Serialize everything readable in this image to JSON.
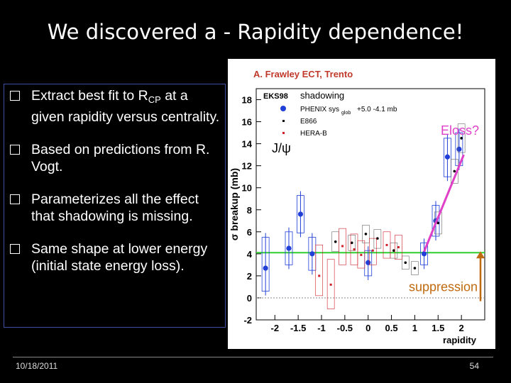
{
  "slide": {
    "title": "We discovered a - Rapidity dependence!",
    "bullets": [
      {
        "text": "Extract best fit to R",
        "sub": "CP",
        "after": " at a given rapidity versus centrality."
      },
      {
        "text": "Based on predictions from R. Vogt.",
        "sub": "",
        "after": ""
      },
      {
        "text": "Parameterizes all the effect that shadowing is missing.",
        "sub": "",
        "after": ""
      },
      {
        "text": "Same shape at lower energy (initial state energy loss).",
        "sub": "",
        "after": ""
      }
    ],
    "footer": {
      "date": "10/18/2011",
      "page": "54"
    }
  },
  "chart_data": {
    "type": "scatter",
    "header": "A. Frawley ECT, Trento",
    "xlabel": "rapidity",
    "ylabel": "σ breakup (mb)",
    "xlim": [
      -2.4,
      2.5
    ],
    "ylim": [
      -2,
      19
    ],
    "xticks": [
      -2,
      -1.5,
      -1,
      -0.5,
      0,
      0.5,
      1,
      1.5,
      2
    ],
    "yticks": [
      -2,
      0,
      2,
      4,
      6,
      8,
      10,
      12,
      14,
      16,
      18
    ],
    "legend": {
      "model": "EKS98",
      "model_sub": "shadowing",
      "entries": [
        {
          "name": "PHENIX sys",
          "suffix": "glob",
          "extra": "+5.0 -4.1 mb",
          "color": "#1f3fd8"
        },
        {
          "name": "E866",
          "color": "#000000"
        },
        {
          "name": "HERA-B",
          "color": "#d0202a"
        }
      ],
      "particle": "J/ψ"
    },
    "annotations": {
      "eloss": "Eloss?",
      "suppression": "suppression"
    },
    "level_line": {
      "y": 4.1,
      "color": "#2fcf2f"
    },
    "eloss_line": {
      "from": [
        1.2,
        4.2
      ],
      "to": [
        2.05,
        13.0
      ],
      "color": "#e040c8"
    },
    "series": [
      {
        "name": "PHENIX",
        "color": "#1f3fd8",
        "points": [
          {
            "x": -2.2,
            "y": 2.7,
            "lo": 0.6,
            "hi": 5.5
          },
          {
            "x": -1.7,
            "y": 4.5,
            "lo": 3.0,
            "hi": 6.0
          },
          {
            "x": -1.45,
            "y": 7.6,
            "lo": 5.9,
            "hi": 9.3
          },
          {
            "x": -1.2,
            "y": 4.0,
            "lo": 2.5,
            "hi": 5.5
          },
          {
            "x": 0.0,
            "y": 3.2,
            "lo": 2.0,
            "hi": 4.3
          },
          {
            "x": 1.2,
            "y": 4.0,
            "lo": 3.0,
            "hi": 5.0
          },
          {
            "x": 1.45,
            "y": 7.0,
            "lo": 5.6,
            "hi": 8.4
          },
          {
            "x": 1.7,
            "y": 12.8,
            "lo": 11.0,
            "hi": 14.5
          },
          {
            "x": 1.95,
            "y": 13.5,
            "lo": 12.0,
            "hi": 15.0
          }
        ]
      },
      {
        "name": "E866",
        "color": "#000000",
        "points": [
          {
            "x": -0.7,
            "y": 5.1,
            "lo": 4.2,
            "hi": 6.0
          },
          {
            "x": -0.35,
            "y": 5.0,
            "lo": 4.3,
            "hi": 5.7
          },
          {
            "x": -0.05,
            "y": 5.8,
            "lo": 5.0,
            "hi": 6.6
          },
          {
            "x": 0.2,
            "y": 5.4,
            "lo": 4.5,
            "hi": 6.2
          },
          {
            "x": 0.55,
            "y": 4.3,
            "lo": 3.6,
            "hi": 5.0
          },
          {
            "x": 0.8,
            "y": 3.2,
            "lo": 2.6,
            "hi": 3.8
          },
          {
            "x": 1.0,
            "y": 2.7,
            "lo": 2.1,
            "hi": 3.3
          },
          {
            "x": 1.5,
            "y": 6.8,
            "lo": 5.8,
            "hi": 7.8
          },
          {
            "x": 1.85,
            "y": 11.5,
            "lo": 10.4,
            "hi": 12.6
          },
          {
            "x": 2.0,
            "y": 14.5,
            "lo": 13.2,
            "hi": 15.8
          }
        ]
      },
      {
        "name": "HERA-B",
        "color": "#d0202a",
        "points": [
          {
            "x": -1.05,
            "y": 2.0,
            "lo": 0.2,
            "hi": 4.8
          },
          {
            "x": -0.8,
            "y": 1.2,
            "lo": -1.0,
            "hi": 3.5
          },
          {
            "x": -0.55,
            "y": 4.7,
            "lo": 3.0,
            "hi": 6.3
          },
          {
            "x": -0.3,
            "y": 4.4,
            "lo": 3.0,
            "hi": 5.8
          },
          {
            "x": -0.15,
            "y": 3.9,
            "lo": 2.7,
            "hi": 5.2
          },
          {
            "x": 0.1,
            "y": 4.3,
            "lo": 3.0,
            "hi": 5.4
          },
          {
            "x": 0.4,
            "y": 4.8,
            "lo": 3.6,
            "hi": 6.0
          },
          {
            "x": 0.65,
            "y": 4.6,
            "lo": 3.5,
            "hi": 5.7
          }
        ]
      }
    ]
  }
}
